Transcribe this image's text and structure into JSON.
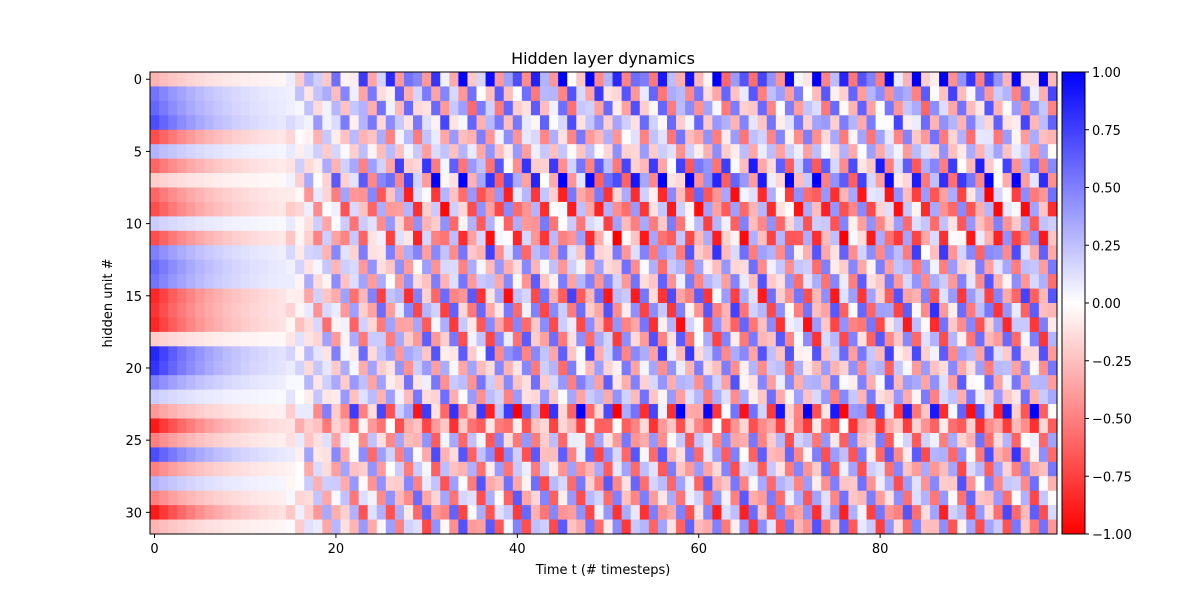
{
  "chart_data": {
    "type": "heatmap",
    "title": "Hidden layer dynamics",
    "xlabel": "Time t (# timesteps)",
    "ylabel": "hidden unit #",
    "n_timesteps": 100,
    "n_units": 32,
    "x_ticks": [
      0,
      20,
      40,
      60,
      80
    ],
    "y_ticks": [
      0,
      5,
      10,
      15,
      20,
      25,
      30
    ],
    "colorbar": {
      "vmin": -1.0,
      "vmax": 1.0,
      "ticks": [
        1.0,
        0.75,
        0.5,
        0.25,
        0.0,
        -0.25,
        -0.5,
        -0.75,
        -1.0
      ],
      "tick_labels": [
        "1.00",
        "0.75",
        "0.50",
        "0.25",
        "0.00",
        "−0.25",
        "−0.50",
        "−0.75",
        "−1.00"
      ]
    },
    "colormap": {
      "name": "bwr",
      "low": "#ff0000",
      "mid": "#ffffff",
      "high": "#0000ff"
    },
    "initial_values": [
      -0.3,
      0.55,
      0.6,
      0.7,
      -0.7,
      0.3,
      -0.6,
      -0.2,
      -0.6,
      -0.7,
      0.2,
      -0.7,
      0.5,
      0.6,
      0.55,
      -0.85,
      -0.8,
      -0.85,
      -0.2,
      0.85,
      0.8,
      0.5,
      0.2,
      -0.4,
      -0.9,
      -0.5,
      0.7,
      -0.5,
      0.3,
      -0.5,
      -0.9,
      -0.3
    ],
    "oscillation_amplitude": [
      0.8,
      0.6,
      0.55,
      0.45,
      0.5,
      0.35,
      0.7,
      0.8,
      0.7,
      0.65,
      0.55,
      0.65,
      0.6,
      0.5,
      0.55,
      0.75,
      0.7,
      0.7,
      0.65,
      0.55,
      0.5,
      0.5,
      0.45,
      0.95,
      0.35,
      0.55,
      0.7,
      0.55,
      0.6,
      0.6,
      0.7,
      0.65
    ],
    "oscillation_offset": [
      0.25,
      0.1,
      0.05,
      0.2,
      -0.05,
      0.0,
      0.1,
      0.25,
      -0.2,
      -0.25,
      -0.1,
      -0.3,
      0.1,
      0.0,
      0.05,
      -0.1,
      0.0,
      -0.15,
      -0.05,
      0.15,
      0.0,
      0.1,
      0.05,
      0.0,
      -0.45,
      -0.1,
      0.0,
      -0.1,
      0.0,
      -0.05,
      -0.1,
      -0.05
    ]
  }
}
